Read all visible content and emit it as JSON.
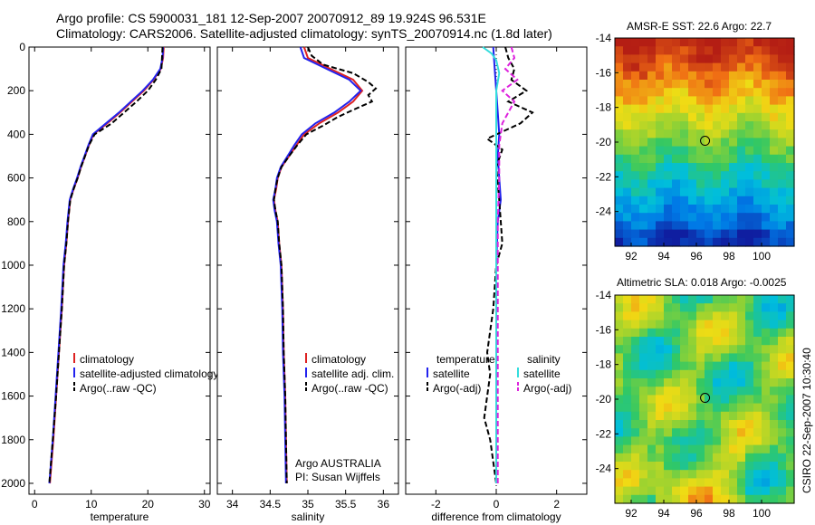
{
  "figure": {
    "title_line1": "Argo profile: CS 5900031_181 12-Sep-2007 20070912_89 19.924S 96.531E",
    "title_line2": "Climatology: CARS2006. Satellite-adjusted climatology: synTS_20070914.nc (1.8d later)",
    "side_label": "CSIRO 22-Sep-2007 10:30:40"
  },
  "colors": {
    "climatology": "#dd2222",
    "satellite": "#2222ee",
    "argo": "#000000",
    "sal_satellite": "#33dddd",
    "sal_argo": "#dd22dd",
    "map_marker": "#000000"
  },
  "chart_data": [
    {
      "type": "line",
      "name": "temperature-profile",
      "xlabel": "temperature",
      "xlim": [
        -1,
        31
      ],
      "ylim": [
        0,
        2050
      ],
      "y_reversed": true,
      "xticks": [
        0,
        10,
        20,
        30
      ],
      "yticks": [
        0,
        200,
        400,
        600,
        800,
        1000,
        1200,
        1400,
        1600,
        1800,
        2000
      ],
      "legend": {
        "position": "lower-middle",
        "entries": [
          "climatology",
          "satellite-adjusted climatology",
          "Argo(..raw -QC)"
        ]
      },
      "series": [
        {
          "name": "climatology",
          "color_key": "climatology",
          "style": "solid",
          "points": [
            [
              22.8,
              0
            ],
            [
              22.7,
              50
            ],
            [
              22.3,
              100
            ],
            [
              21.0,
              150
            ],
            [
              19.3,
              200
            ],
            [
              17.2,
              250
            ],
            [
              15.1,
              300
            ],
            [
              12.8,
              350
            ],
            [
              10.4,
              400
            ],
            [
              9.6,
              450
            ],
            [
              8.9,
              500
            ],
            [
              8.2,
              550
            ],
            [
              7.6,
              600
            ],
            [
              6.9,
              650
            ],
            [
              6.3,
              700
            ],
            [
              5.9,
              800
            ],
            [
              5.6,
              900
            ],
            [
              5.2,
              1000
            ],
            [
              4.8,
              1200
            ],
            [
              4.3,
              1400
            ],
            [
              3.8,
              1600
            ],
            [
              3.3,
              1800
            ],
            [
              2.7,
              2000
            ]
          ]
        },
        {
          "name": "satellite-adjusted climatology",
          "color_key": "satellite",
          "style": "solid",
          "points": [
            [
              22.7,
              0
            ],
            [
              22.6,
              50
            ],
            [
              22.2,
              100
            ],
            [
              20.9,
              150
            ],
            [
              19.1,
              200
            ],
            [
              17.0,
              250
            ],
            [
              14.9,
              300
            ],
            [
              12.6,
              350
            ],
            [
              10.3,
              400
            ],
            [
              9.5,
              450
            ],
            [
              8.8,
              500
            ],
            [
              8.1,
              550
            ],
            [
              7.5,
              600
            ],
            [
              6.8,
              650
            ],
            [
              6.2,
              700
            ],
            [
              5.8,
              800
            ],
            [
              5.5,
              900
            ],
            [
              5.1,
              1000
            ],
            [
              4.7,
              1200
            ],
            [
              4.2,
              1400
            ],
            [
              3.7,
              1600
            ],
            [
              3.2,
              1800
            ],
            [
              2.6,
              2000
            ]
          ]
        },
        {
          "name": "Argo(..raw -QC)",
          "color_key": "argo",
          "style": "dashed",
          "points": [
            [
              22.6,
              0
            ],
            [
              22.5,
              50
            ],
            [
              22.4,
              100
            ],
            [
              21.4,
              150
            ],
            [
              20.0,
              200
            ],
            [
              18.0,
              250
            ],
            [
              15.8,
              300
            ],
            [
              13.6,
              350
            ],
            [
              10.6,
              400
            ],
            [
              9.6,
              450
            ],
            [
              8.9,
              500
            ],
            [
              8.2,
              550
            ],
            [
              7.6,
              600
            ],
            [
              6.9,
              650
            ],
            [
              6.3,
              700
            ],
            [
              5.9,
              800
            ],
            [
              5.6,
              900
            ],
            [
              5.2,
              1000
            ],
            [
              4.8,
              1200
            ],
            [
              4.3,
              1400
            ],
            [
              3.8,
              1600
            ],
            [
              3.2,
              1800
            ],
            [
              2.6,
              2000
            ]
          ]
        }
      ]
    },
    {
      "type": "line",
      "name": "salinity-profile",
      "xlabel": "salinity",
      "xlim": [
        33.8,
        36.2
      ],
      "ylim": [
        0,
        2050
      ],
      "y_reversed": true,
      "xticks": [
        34,
        34.5,
        35,
        35.5,
        36
      ],
      "legend": {
        "position": "lower-middle",
        "entries": [
          "climatology",
          "satellite adj. clim.",
          "Argo(..raw -QC)"
        ]
      },
      "annotation": [
        "Argo AUSTRALIA",
        "PI: Susan Wijffels"
      ],
      "series": [
        {
          "name": "climatology",
          "color_key": "climatology",
          "style": "solid",
          "points": [
            [
              34.95,
              0
            ],
            [
              35.0,
              50
            ],
            [
              35.3,
              100
            ],
            [
              35.6,
              150
            ],
            [
              35.72,
              200
            ],
            [
              35.6,
              250
            ],
            [
              35.4,
              300
            ],
            [
              35.15,
              350
            ],
            [
              34.95,
              400
            ],
            [
              34.85,
              450
            ],
            [
              34.75,
              500
            ],
            [
              34.65,
              550
            ],
            [
              34.6,
              600
            ],
            [
              34.58,
              650
            ],
            [
              34.55,
              700
            ],
            [
              34.57,
              750
            ],
            [
              34.6,
              800
            ],
            [
              34.62,
              900
            ],
            [
              34.65,
              1000
            ],
            [
              34.67,
              1200
            ],
            [
              34.68,
              1400
            ],
            [
              34.7,
              1600
            ],
            [
              34.71,
              1800
            ],
            [
              34.72,
              2000
            ]
          ]
        },
        {
          "name": "satellite adj. clim.",
          "color_key": "satellite",
          "style": "solid",
          "points": [
            [
              34.9,
              0
            ],
            [
              34.95,
              50
            ],
            [
              35.25,
              100
            ],
            [
              35.55,
              150
            ],
            [
              35.7,
              200
            ],
            [
              35.55,
              250
            ],
            [
              35.35,
              300
            ],
            [
              35.1,
              350
            ],
            [
              34.92,
              400
            ],
            [
              34.82,
              450
            ],
            [
              34.73,
              500
            ],
            [
              34.64,
              550
            ],
            [
              34.59,
              600
            ],
            [
              34.57,
              650
            ],
            [
              34.54,
              700
            ],
            [
              34.56,
              750
            ],
            [
              34.59,
              800
            ],
            [
              34.61,
              900
            ],
            [
              34.64,
              1000
            ],
            [
              34.66,
              1200
            ],
            [
              34.67,
              1400
            ],
            [
              34.69,
              1600
            ],
            [
              34.7,
              1800
            ],
            [
              34.71,
              2000
            ]
          ]
        },
        {
          "name": "Argo(..raw -QC)",
          "color_key": "argo",
          "style": "dashed",
          "points": [
            [
              35.0,
              0
            ],
            [
              35.05,
              40
            ],
            [
              35.2,
              80
            ],
            [
              35.6,
              120
            ],
            [
              35.8,
              160
            ],
            [
              35.9,
              190
            ],
            [
              35.8,
              220
            ],
            [
              35.85,
              250
            ],
            [
              35.65,
              280
            ],
            [
              35.4,
              320
            ],
            [
              35.2,
              360
            ],
            [
              34.98,
              400
            ],
            [
              34.86,
              450
            ],
            [
              34.75,
              500
            ],
            [
              34.65,
              550
            ],
            [
              34.6,
              600
            ],
            [
              34.57,
              650
            ],
            [
              34.55,
              700
            ],
            [
              34.57,
              750
            ],
            [
              34.6,
              800
            ],
            [
              34.62,
              900
            ],
            [
              34.65,
              1000
            ],
            [
              34.67,
              1200
            ],
            [
              34.68,
              1400
            ],
            [
              34.7,
              1600
            ],
            [
              34.71,
              1800
            ],
            [
              34.72,
              2000
            ]
          ]
        }
      ]
    },
    {
      "type": "line",
      "name": "difference-profile",
      "xlabel": "difference from climatology",
      "xlim": [
        -3,
        3
      ],
      "ylim": [
        0,
        2050
      ],
      "y_reversed": true,
      "xticks": [
        -2,
        0,
        2
      ],
      "legend": {
        "position": "lower-middle",
        "columns": [
          {
            "heading": "temperature",
            "entries": [
              "satellite",
              "Argo(-adj)"
            ]
          },
          {
            "heading": "salinity",
            "entries": [
              "satellite",
              "Argo(-adj)"
            ]
          }
        ]
      },
      "series": [
        {
          "name": "satellite",
          "group": "temperature",
          "color_key": "satellite",
          "style": "solid",
          "points": [
            [
              -0.1,
              0
            ],
            [
              -0.05,
              100
            ],
            [
              0,
              200
            ],
            [
              0.05,
              300
            ],
            [
              0.1,
              400
            ],
            [
              0.05,
              500
            ],
            [
              0.1,
              600
            ],
            [
              0.15,
              700
            ],
            [
              0.05,
              800
            ],
            [
              0,
              1000
            ],
            [
              0,
              1500
            ],
            [
              0,
              2000
            ]
          ]
        },
        {
          "name": "Argo(-adj)",
          "group": "temperature",
          "color_key": "argo",
          "style": "dashed",
          "points": [
            [
              0.3,
              0
            ],
            [
              0.4,
              50
            ],
            [
              0.6,
              100
            ],
            [
              0.5,
              150
            ],
            [
              1.0,
              200
            ],
            [
              0.4,
              250
            ],
            [
              1.2,
              300
            ],
            [
              0.8,
              350
            ],
            [
              -0.3,
              420
            ],
            [
              0.2,
              470
            ],
            [
              0,
              550
            ],
            [
              0.1,
              700
            ],
            [
              0.2,
              900
            ],
            [
              0,
              1000
            ],
            [
              -0.1,
              1200
            ],
            [
              -0.3,
              1400
            ],
            [
              -0.2,
              1500
            ],
            [
              -0.4,
              1700
            ],
            [
              -0.2,
              1800
            ],
            [
              0,
              2000
            ]
          ]
        },
        {
          "name": "satellite",
          "group": "salinity",
          "color_key": "sal_satellite",
          "style": "solid",
          "points": [
            [
              -0.45,
              0
            ],
            [
              -0.15,
              30
            ],
            [
              0,
              60
            ],
            [
              0.1,
              120
            ],
            [
              0,
              200
            ],
            [
              0,
              300
            ],
            [
              0,
              400
            ],
            [
              0,
              600
            ],
            [
              0,
              800
            ],
            [
              0,
              1000
            ],
            [
              0,
              1500
            ],
            [
              0,
              2000
            ]
          ]
        },
        {
          "name": "Argo(-adj)",
          "group": "salinity",
          "color_key": "sal_argo",
          "style": "dashed",
          "points": [
            [
              0.5,
              0
            ],
            [
              0.6,
              50
            ],
            [
              0.3,
              100
            ],
            [
              0.7,
              150
            ],
            [
              0.2,
              200
            ],
            [
              0.6,
              250
            ],
            [
              0.4,
              300
            ],
            [
              0.2,
              350
            ],
            [
              0.1,
              450
            ],
            [
              0.1,
              600
            ],
            [
              0.05,
              800
            ],
            [
              0.05,
              1000
            ],
            [
              0.05,
              1500
            ],
            [
              0.05,
              2000
            ]
          ]
        }
      ]
    },
    {
      "type": "heatmap",
      "name": "sst-map",
      "title": "AMSR-E SST: 22.6 Argo: 22.7",
      "xlim": [
        91,
        102
      ],
      "ylim": [
        -26,
        -14
      ],
      "xticks": [
        92,
        94,
        96,
        98,
        100
      ],
      "yticks": [
        -14,
        -16,
        -18,
        -20,
        -22,
        -24
      ],
      "marker": {
        "lon": 96.531,
        "lat": -19.924
      }
    },
    {
      "type": "heatmap",
      "name": "sla-map",
      "title": "Altimetric SLA: 0.018 Argo: -0.0025",
      "xlim": [
        91,
        102
      ],
      "ylim": [
        -26,
        -14
      ],
      "xticks": [
        92,
        94,
        96,
        98,
        100
      ],
      "yticks": [
        -14,
        -16,
        -18,
        -20,
        -22,
        -24
      ],
      "marker": {
        "lon": 96.531,
        "lat": -19.924
      }
    }
  ]
}
